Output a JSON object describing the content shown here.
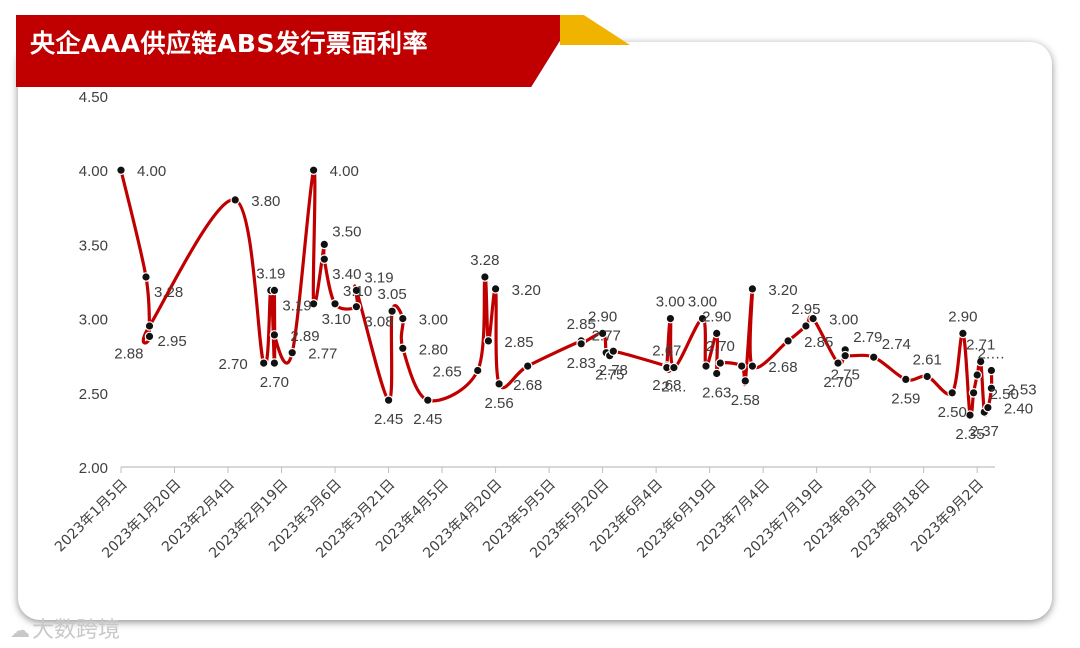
{
  "header": {
    "title": "央企AAA供应链ABS发行票面利率"
  },
  "watermark": {
    "icon": "logo-icon",
    "glyph": "☁",
    "text": "大数跨境"
  },
  "colors": {
    "title_bg": "#c00000",
    "title_accent": "#f0b400",
    "line": "#c00000",
    "marker": "#111111"
  },
  "chart_data": {
    "type": "line",
    "title": "央企AAA供应链ABS发行票面利率",
    "xlabel": "",
    "ylabel": "",
    "x_range": [
      "2023-01-05",
      "2023-09-07"
    ],
    "ylim": [
      2.0,
      4.5
    ],
    "yticks": [
      "2.00",
      "2.50",
      "3.00",
      "3.50",
      "4.00",
      "4.50"
    ],
    "xticks": [
      "2023年1月5日",
      "2023年1月20日",
      "2023年2月4日",
      "2023年2月19日",
      "2023年3月6日",
      "2023年3月21日",
      "2023年4月5日",
      "2023年4月20日",
      "2023年5月5日",
      "2023年5月20日",
      "2023年6月4日",
      "2023年6月19日",
      "2023年7月4日",
      "2023年7月19日",
      "2023年8月3日",
      "2023年8月18日",
      "2023年9月2日"
    ],
    "grid": false,
    "legend": "none",
    "points": [
      {
        "x": "2023-01-05",
        "y": 4.0,
        "label": "4.00",
        "lp": "r"
      },
      {
        "x": "2023-01-12",
        "y": 3.28,
        "label": "3.28",
        "lp": "rd"
      },
      {
        "x": "2023-01-13",
        "y": 2.88,
        "label": "2.88",
        "lp": "bl"
      },
      {
        "x": "2023-01-13",
        "y": 2.95,
        "label": "2.95",
        "lp": "rd"
      },
      {
        "x": "2023-02-06",
        "y": 3.8,
        "label": "3.80",
        "lp": "r"
      },
      {
        "x": "2023-02-14",
        "y": 2.7,
        "label": "2.70",
        "lp": "l"
      },
      {
        "x": "2023-02-16",
        "y": 3.19,
        "label": "3.19",
        "lp": "t"
      },
      {
        "x": "2023-02-17",
        "y": 2.7,
        "label": "2.70",
        "lp": "b"
      },
      {
        "x": "2023-02-17",
        "y": 3.19,
        "label": "3.19",
        "lp": "rd"
      },
      {
        "x": "2023-02-17",
        "y": 2.89,
        "label": "2.89",
        "lp": "r"
      },
      {
        "x": "2023-02-22",
        "y": 2.77,
        "label": "2.77",
        "lp": "r"
      },
      {
        "x": "2023-02-28",
        "y": 4.0,
        "label": "4.00",
        "lp": "r"
      },
      {
        "x": "2023-02-28",
        "y": 3.1,
        "label": "3.10",
        "lp": "rd"
      },
      {
        "x": "2023-03-03",
        "y": 3.5,
        "label": "3.50",
        "lp": "rt"
      },
      {
        "x": "2023-03-03",
        "y": 3.4,
        "label": "3.40",
        "lp": "rd"
      },
      {
        "x": "2023-03-06",
        "y": 3.1,
        "label": "3.10",
        "lp": "rt"
      },
      {
        "x": "2023-03-12",
        "y": 3.08,
        "label": "3.08",
        "lp": "rd"
      },
      {
        "x": "2023-03-12",
        "y": 3.19,
        "label": "3.19",
        "lp": "rt"
      },
      {
        "x": "2023-03-21",
        "y": 2.45,
        "label": "2.45",
        "lp": "b"
      },
      {
        "x": "2023-03-22",
        "y": 3.05,
        "label": "3.05",
        "lp": "t"
      },
      {
        "x": "2023-03-25",
        "y": 3.0,
        "label": "3.00",
        "lp": "r"
      },
      {
        "x": "2023-03-25",
        "y": 2.8,
        "label": "2.80",
        "lp": "r"
      },
      {
        "x": "2023-04-01",
        "y": 2.45,
        "label": "2.45",
        "lp": "b"
      },
      {
        "x": "2023-04-15",
        "y": 2.65,
        "label": "2.65",
        "lp": "l"
      },
      {
        "x": "2023-04-17",
        "y": 3.28,
        "label": "3.28",
        "lp": "t"
      },
      {
        "x": "2023-04-18",
        "y": 2.85,
        "label": "2.85",
        "lp": "r"
      },
      {
        "x": "2023-04-20",
        "y": 3.2,
        "label": "3.20",
        "lp": "r"
      },
      {
        "x": "2023-04-21",
        "y": 2.56,
        "label": "2.56",
        "lp": "b"
      },
      {
        "x": "2023-04-29",
        "y": 2.68,
        "label": "2.68",
        "lp": "b"
      },
      {
        "x": "2023-05-14",
        "y": 2.85,
        "label": "2.85",
        "lp": "t"
      },
      {
        "x": "2023-05-14",
        "y": 2.83,
        "label": "2.83",
        "lp": "b"
      },
      {
        "x": "2023-05-20",
        "y": 2.9,
        "label": "2.90",
        "lp": "t"
      },
      {
        "x": "2023-05-21",
        "y": 2.77,
        "label": "2.77",
        "lp": "t"
      },
      {
        "x": "2023-05-22",
        "y": 2.75,
        "label": "2.75",
        "lp": "b"
      },
      {
        "x": "2023-05-23",
        "y": 2.78,
        "label": "2.78",
        "lp": "b"
      },
      {
        "x": "2023-06-07",
        "y": 2.68,
        "label": "2.68",
        "lp": "b"
      },
      {
        "x": "2023-06-07",
        "y": 2.67,
        "label": "2.67",
        "lp": "t"
      },
      {
        "x": "2023-06-08",
        "y": 3.0,
        "label": "3.00",
        "lp": "t"
      },
      {
        "x": "2023-06-09",
        "y": 2.67,
        "label": "2....",
        "lp": "b"
      },
      {
        "x": "2023-06-17",
        "y": 3.0,
        "label": "3.00",
        "lp": "t"
      },
      {
        "x": "2023-06-18",
        "y": 2.68,
        "label": "",
        "lp": "n"
      },
      {
        "x": "2023-06-21",
        "y": 2.9,
        "label": "2.90",
        "lp": "t"
      },
      {
        "x": "2023-06-21",
        "y": 2.63,
        "label": "2.63",
        "lp": "b"
      },
      {
        "x": "2023-06-22",
        "y": 2.7,
        "label": "2.70",
        "lp": "t"
      },
      {
        "x": "2023-06-28",
        "y": 2.68,
        "label": "",
        "lp": "n"
      },
      {
        "x": "2023-06-29",
        "y": 2.58,
        "label": "2.58",
        "lp": "b"
      },
      {
        "x": "2023-07-01",
        "y": 3.2,
        "label": "3.20",
        "lp": "r"
      },
      {
        "x": "2023-07-01",
        "y": 2.68,
        "label": "2.68",
        "lp": "r"
      },
      {
        "x": "2023-07-11",
        "y": 2.85,
        "label": "2.85",
        "lp": "r"
      },
      {
        "x": "2023-07-16",
        "y": 2.95,
        "label": "2.95",
        "lp": "t"
      },
      {
        "x": "2023-07-18",
        "y": 3.0,
        "label": "3.00",
        "lp": "r"
      },
      {
        "x": "2023-07-25",
        "y": 2.7,
        "label": "2.70",
        "lp": "b"
      },
      {
        "x": "2023-07-27",
        "y": 2.79,
        "label": "2.79",
        "lp": "rt"
      },
      {
        "x": "2023-07-27",
        "y": 2.75,
        "label": "2.75",
        "lp": "b"
      },
      {
        "x": "2023-08-04",
        "y": 2.74,
        "label": "2.74",
        "lp": "rt"
      },
      {
        "x": "2023-08-13",
        "y": 2.59,
        "label": "2.59",
        "lp": "b"
      },
      {
        "x": "2023-08-19",
        "y": 2.61,
        "label": "2.61",
        "lp": "t"
      },
      {
        "x": "2023-08-26",
        "y": 2.5,
        "label": "2.50",
        "lp": "b"
      },
      {
        "x": "2023-08-29",
        "y": 2.9,
        "label": "2.90",
        "lp": "t"
      },
      {
        "x": "2023-08-31",
        "y": 2.35,
        "label": "2.35",
        "lp": "b"
      },
      {
        "x": "2023-09-01",
        "y": 2.5,
        "label": "2.50",
        "lp": "r"
      },
      {
        "x": "2023-09-02",
        "y": 2.62,
        "label": "",
        "lp": "n"
      },
      {
        "x": "2023-09-03",
        "y": 2.71,
        "label": "2.71",
        "lp": "t"
      },
      {
        "x": "2023-09-04",
        "y": 2.37,
        "label": "2.37",
        "lp": "b"
      },
      {
        "x": "2023-09-05",
        "y": 2.4,
        "label": "2.40",
        "lp": "r"
      },
      {
        "x": "2023-09-06",
        "y": 2.53,
        "label": "2.53",
        "lp": "r"
      },
      {
        "x": "2023-09-06",
        "y": 2.65,
        "label": "2.…",
        "lp": "t"
      }
    ]
  }
}
